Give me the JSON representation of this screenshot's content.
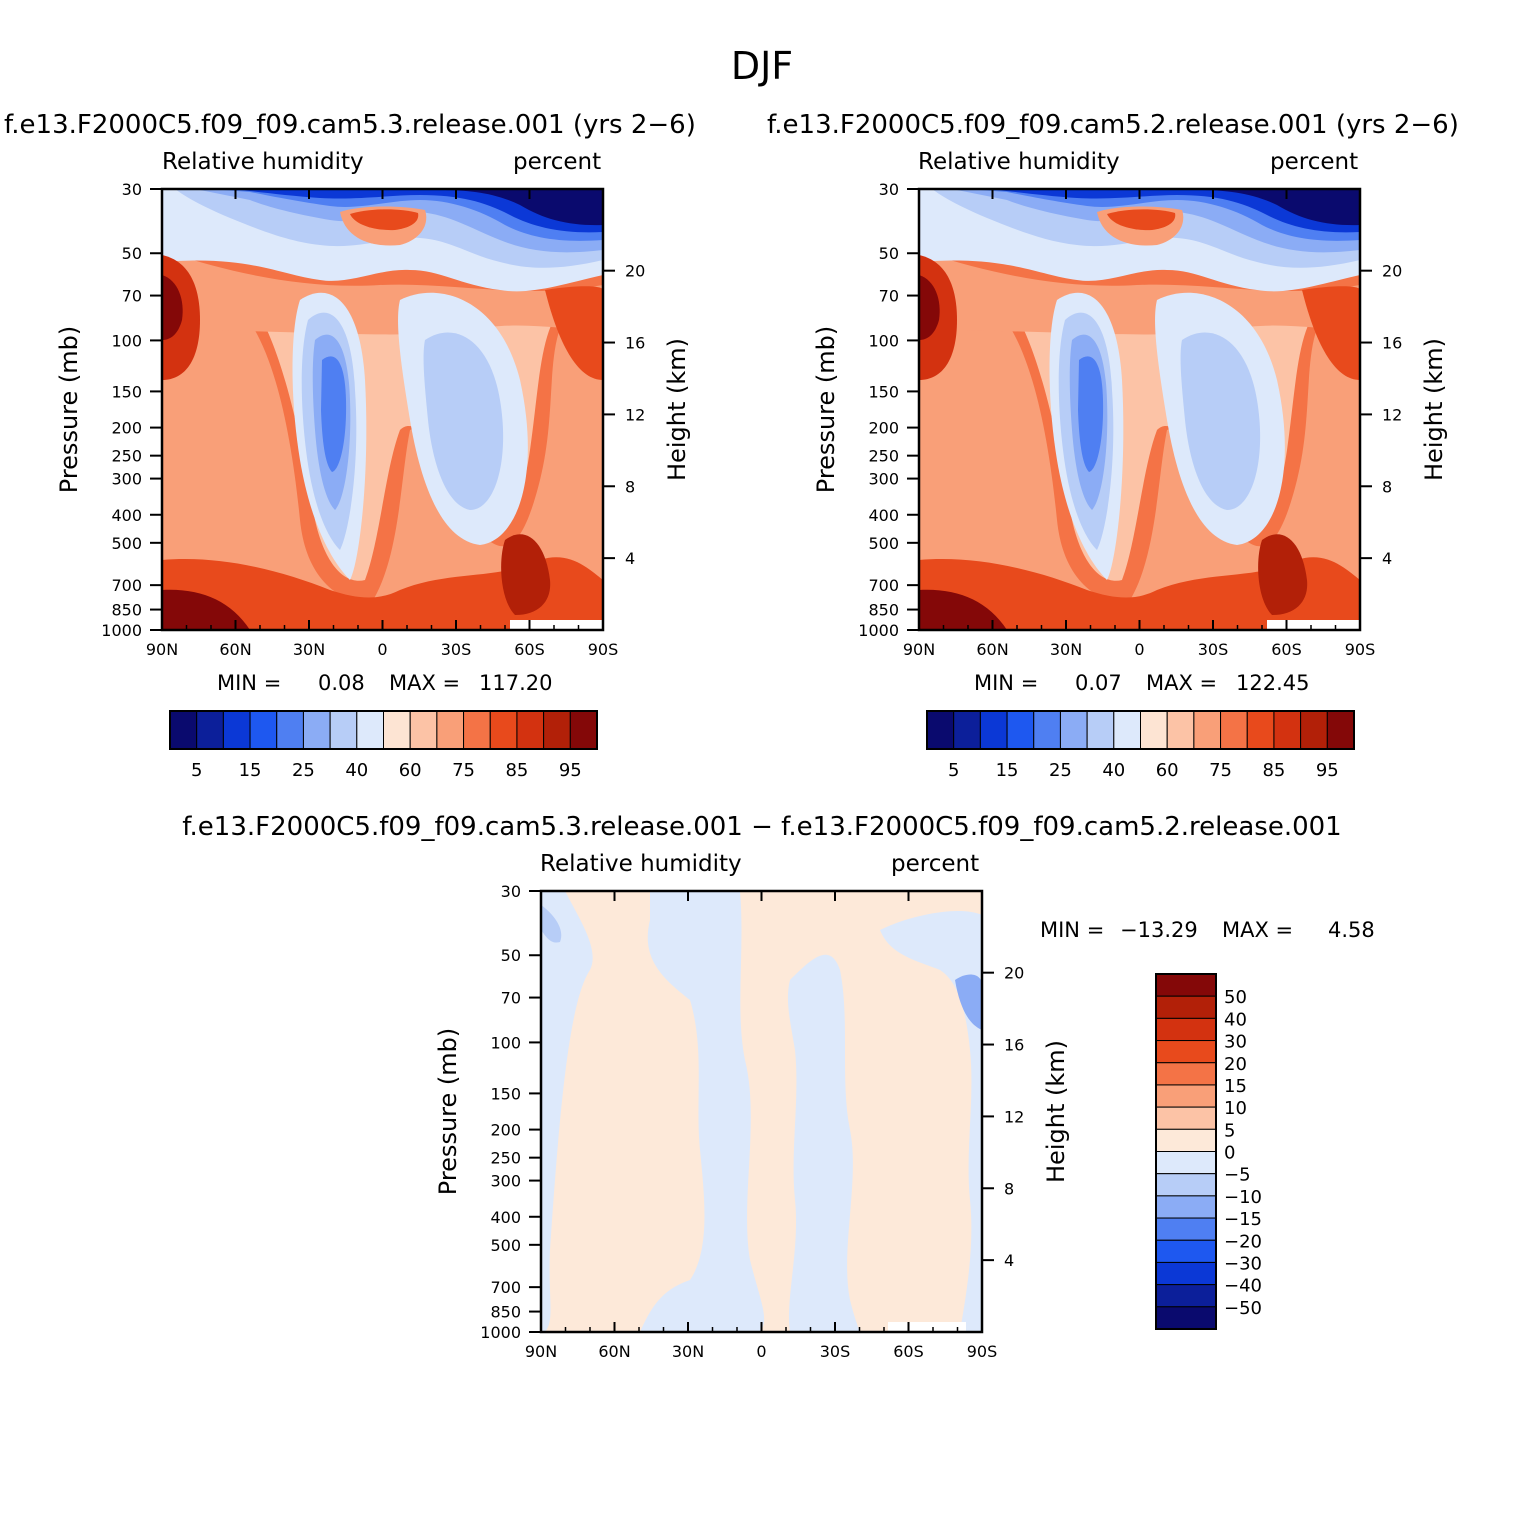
{
  "title": "DJF",
  "colors": {
    "abs_palette": [
      "#0a0a6e",
      "#0c1f9a",
      "#0b38d6",
      "#1e58f0",
      "#4f7ff2",
      "#8bacf5",
      "#b7cdf7",
      "#dde9fb",
      "#fde4d3",
      "#fcc3a6",
      "#f99f78",
      "#f47346",
      "#e84a1c",
      "#d33210",
      "#b22008",
      "#840808"
    ],
    "diff_palette": [
      "#0a0a6e",
      "#0c1f9a",
      "#0b38d6",
      "#1e58f0",
      "#4f7ff2",
      "#8bacf5",
      "#b7cdf7",
      "#dde9fb",
      "#fde9d9",
      "#fcc3a6",
      "#f99f78",
      "#f47346",
      "#e84a1c",
      "#d33210",
      "#b22008",
      "#840808"
    ]
  },
  "panels": [
    {
      "case": "f.e13.F2000C5.f09_f09.cam5.3.release.001 (yrs 2−6)",
      "left_label": "Relative humidity",
      "right_label": "percent",
      "min_label": "MIN =",
      "min_value": "0.08",
      "max_label": "MAX =",
      "max_value": "117.20"
    },
    {
      "case": "f.e13.F2000C5.f09_f09.cam5.2.release.001 (yrs 2−6)",
      "left_label": "Relative humidity",
      "right_label": "percent",
      "min_label": "MIN =",
      "min_value": "0.07",
      "max_label": "MAX =",
      "max_value": "122.45"
    },
    {
      "case": "f.e13.F2000C5.f09_f09.cam5.3.release.001 − f.e13.F2000C5.f09_f09.cam5.2.release.001",
      "left_label": "Relative humidity",
      "right_label": "percent",
      "min_label": "MIN =",
      "min_value": "−13.29",
      "max_label": "MAX =",
      "max_value": "4.58"
    }
  ],
  "chart_data": [
    {
      "type": "heatmap",
      "ylabel": "Pressure (mb)",
      "y2label": "Height (km)",
      "xticks": [
        "90N",
        "60N",
        "30N",
        "0",
        "30S",
        "60S",
        "90S"
      ],
      "yticks": [
        "30",
        "50",
        "70",
        "100",
        "150",
        "200",
        "250",
        "300",
        "400",
        "500",
        "700",
        "850",
        "1000"
      ],
      "y2ticks": [
        "20",
        "16",
        "12",
        "8",
        "4"
      ],
      "colorbar_labels": [
        "5",
        "15",
        "25",
        "40",
        "60",
        "75",
        "85",
        "95"
      ],
      "min": 0.08,
      "max": 117.2
    },
    {
      "type": "heatmap",
      "ylabel": "Pressure (mb)",
      "y2label": "Height (km)",
      "xticks": [
        "90N",
        "60N",
        "30N",
        "0",
        "30S",
        "60S",
        "90S"
      ],
      "yticks": [
        "30",
        "50",
        "70",
        "100",
        "150",
        "200",
        "250",
        "300",
        "400",
        "500",
        "700",
        "850",
        "1000"
      ],
      "y2ticks": [
        "20",
        "16",
        "12",
        "8",
        "4"
      ],
      "colorbar_labels": [
        "5",
        "15",
        "25",
        "40",
        "60",
        "75",
        "85",
        "95"
      ],
      "min": 0.07,
      "max": 122.45
    },
    {
      "type": "heatmap",
      "ylabel": "Pressure (mb)",
      "y2label": "Height (km)",
      "xticks": [
        "90N",
        "60N",
        "30N",
        "0",
        "30S",
        "60S",
        "90S"
      ],
      "yticks": [
        "30",
        "50",
        "70",
        "100",
        "150",
        "200",
        "250",
        "300",
        "400",
        "500",
        "700",
        "850",
        "1000"
      ],
      "y2ticks": [
        "20",
        "16",
        "12",
        "8",
        "4"
      ],
      "colorbar_labels": [
        "50",
        "40",
        "30",
        "20",
        "15",
        "10",
        "5",
        "0",
        "−5",
        "−10",
        "−15",
        "−20",
        "−30",
        "−40",
        "−50"
      ],
      "min": -13.29,
      "max": 4.58
    }
  ]
}
